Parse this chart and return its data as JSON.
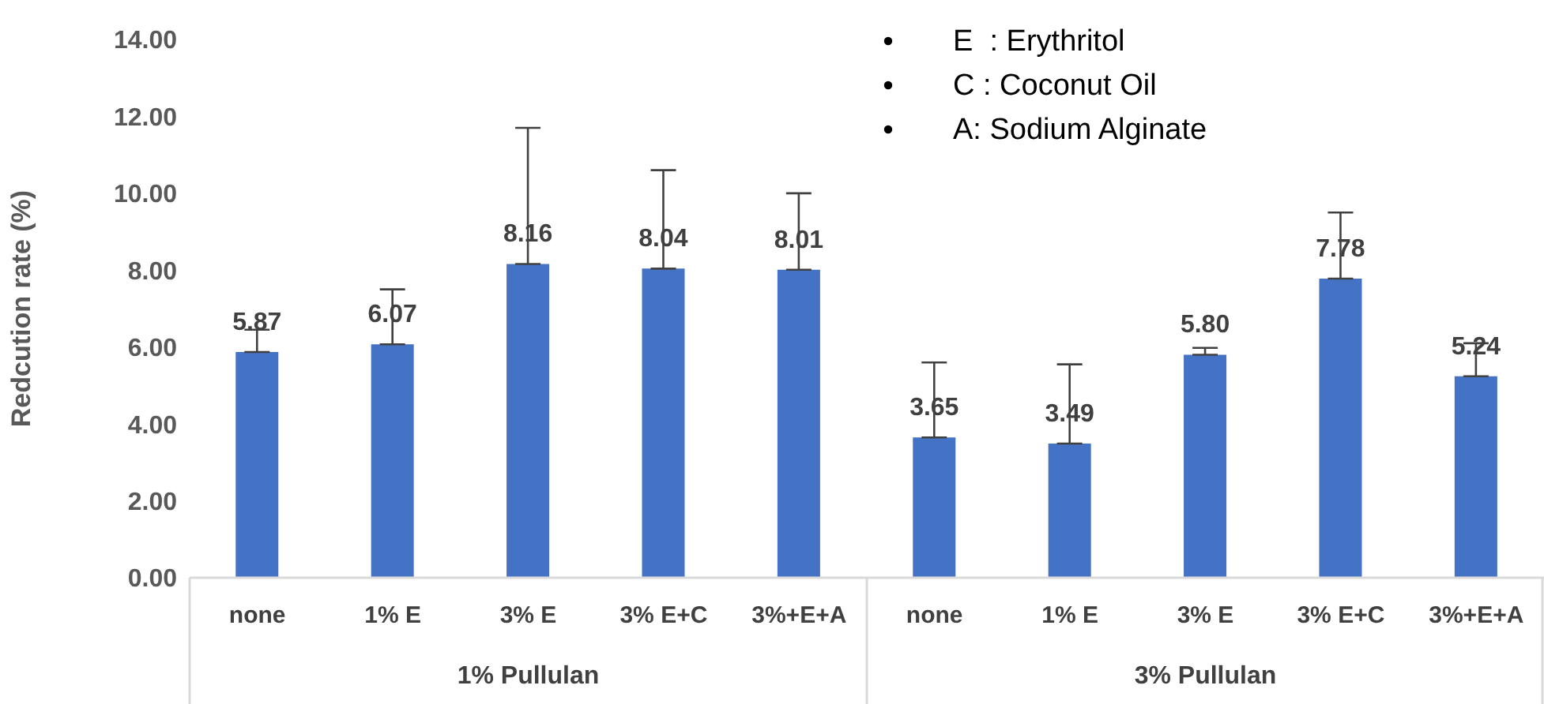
{
  "chart_data": {
    "type": "bar",
    "ylabel": "Redcution rate (%)",
    "categories": [
      "none",
      "1% E",
      "3% E",
      "3% E+C",
      "3%+E+A",
      "none",
      "1% E",
      "3% E",
      "3% E+C",
      "3%+E+A"
    ],
    "values": [
      5.87,
      6.07,
      8.16,
      8.04,
      8.01,
      3.65,
      3.49,
      5.8,
      7.78,
      5.24
    ],
    "value_labels": [
      "5.87",
      "6.07",
      "8.16",
      "8.04",
      "8.01",
      "3.65",
      "3.49",
      "5.80",
      "7.78",
      "5.24"
    ],
    "errors": [
      [
        5.87,
        6.45
      ],
      [
        6.07,
        7.5
      ],
      [
        8.16,
        11.7
      ],
      [
        8.04,
        10.6
      ],
      [
        8.01,
        10.0
      ],
      [
        3.65,
        5.6
      ],
      [
        3.49,
        5.55
      ],
      [
        5.8,
        5.98
      ],
      [
        7.78,
        9.5
      ],
      [
        5.24,
        6.1
      ]
    ],
    "color": "#4472c4",
    "ylim": [
      0,
      14
    ],
    "yticks": [
      {
        "value": 0,
        "label": "0.00"
      },
      {
        "value": 2,
        "label": "2.00"
      },
      {
        "value": 4,
        "label": "4.00"
      },
      {
        "value": 6,
        "label": "6.00"
      },
      {
        "value": 8,
        "label": "8.00"
      },
      {
        "value": 10,
        "label": "10.00"
      },
      {
        "value": 12,
        "label": "12.00"
      },
      {
        "value": 14,
        "label": "14.00"
      }
    ],
    "grid": false,
    "legend": false,
    "annotations": [
      "E  : Erythritol",
      "C : Coconut Oil",
      "A: Sodium Alginate",
      "1% Pullulan",
      "3% Pullulan"
    ]
  }
}
